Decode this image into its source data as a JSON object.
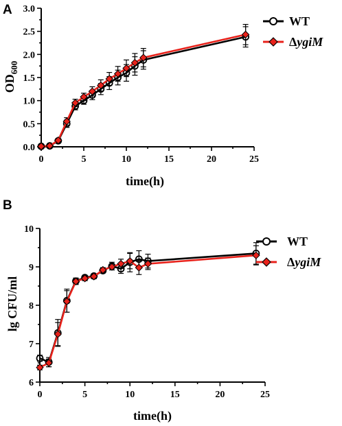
{
  "chart_data": [
    {
      "type": "line",
      "panel_label": "A",
      "xlabel": "time(h)",
      "ylabel_main": "OD",
      "ylabel_sub": "600",
      "xlim": [
        0,
        25
      ],
      "ylim": [
        0,
        3
      ],
      "xticks": [
        "0",
        "5",
        "10",
        "15",
        "20",
        "25"
      ],
      "yticks": [
        "0.0",
        "0.5",
        "1.0",
        "1.5",
        "2.0",
        "2.5",
        "3.0"
      ],
      "grid": false,
      "legend_position": "top-right",
      "x": [
        0,
        1,
        2,
        3,
        4,
        5,
        6,
        7,
        8,
        9,
        10,
        11,
        12,
        24
      ],
      "series": [
        {
          "name": "WT",
          "color": "#000000",
          "marker": "circle",
          "values": [
            0.01,
            0.02,
            0.13,
            0.5,
            0.88,
            1.0,
            1.12,
            1.25,
            1.38,
            1.5,
            1.6,
            1.75,
            1.88,
            2.38
          ],
          "errors": [
            0.01,
            0.01,
            0.03,
            0.08,
            0.08,
            0.08,
            0.1,
            0.12,
            0.14,
            0.16,
            0.18,
            0.2,
            0.2,
            0.22
          ]
        },
        {
          "name": "ΔygiM",
          "name_prefix": "Δ",
          "name_italic": "ygiM",
          "color": "#e8221b",
          "marker": "diamond",
          "values": [
            0.01,
            0.02,
            0.14,
            0.55,
            0.95,
            1.08,
            1.2,
            1.33,
            1.47,
            1.58,
            1.7,
            1.82,
            1.93,
            2.43
          ],
          "errors": [
            0.01,
            0.01,
            0.03,
            0.08,
            0.08,
            0.08,
            0.1,
            0.12,
            0.14,
            0.16,
            0.18,
            0.2,
            0.2,
            0.22
          ]
        }
      ]
    },
    {
      "type": "line",
      "panel_label": "B",
      "xlabel": "time(h)",
      "ylabel": "lg CFU/ml",
      "xlim": [
        0,
        25
      ],
      "ylim": [
        6,
        10
      ],
      "xticks": [
        "0",
        "5",
        "10",
        "15",
        "20",
        "25"
      ],
      "yticks": [
        "6",
        "7",
        "8",
        "9",
        "10"
      ],
      "grid": false,
      "legend_position": "top-right",
      "x": [
        0,
        1,
        2,
        3,
        4,
        5,
        6,
        7,
        8,
        9,
        10,
        11,
        12,
        24
      ],
      "series": [
        {
          "name": "WT",
          "color": "#000000",
          "marker": "circle",
          "values": [
            6.62,
            6.52,
            7.28,
            8.12,
            8.63,
            8.72,
            8.76,
            8.9,
            9.02,
            8.95,
            9.12,
            9.2,
            9.15,
            9.35
          ],
          "errors": [
            0.08,
            0.12,
            0.35,
            0.3,
            0.08,
            0.06,
            0.06,
            0.06,
            0.1,
            0.12,
            0.25,
            0.22,
            0.18,
            0.28
          ]
        },
        {
          "name": "ΔygiM",
          "name_prefix": "Δ",
          "name_italic": "ygiM",
          "color": "#e8221b",
          "marker": "diamond",
          "values": [
            6.38,
            6.5,
            7.25,
            8.1,
            8.62,
            8.7,
            8.75,
            8.92,
            9.0,
            9.08,
            9.15,
            8.98,
            9.08,
            9.3
          ],
          "errors": [
            0.06,
            0.1,
            0.3,
            0.28,
            0.08,
            0.06,
            0.06,
            0.06,
            0.08,
            0.12,
            0.2,
            0.18,
            0.15,
            0.25
          ]
        }
      ]
    }
  ]
}
